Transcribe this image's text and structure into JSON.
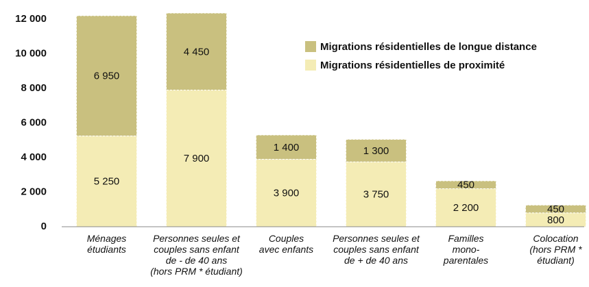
{
  "chart_data": {
    "type": "stacked_bar",
    "categories": [
      "Ménages\nétudiants",
      "Personnes seules et\ncouples sans enfant\nde - de 40 ans\n(hors PRM * étudiant)",
      "Couples\navec enfants",
      "Personnes seules et\ncouples sans enfant\nde + de 40 ans",
      "Familles\nmono-\nparentales",
      "Colocation\n(hors PRM *\nétudiant)"
    ],
    "series": [
      {
        "name": "Migrations résidentielles de proximité",
        "color": "#f4ecb5",
        "values": [
          5250,
          7900,
          3900,
          3750,
          2200,
          800
        ],
        "value_labels": [
          "5 250",
          "7 900",
          "3 900",
          "3 750",
          "2 200",
          "800"
        ]
      },
      {
        "name": "Migrations résidentielles de longue distance",
        "color": "#c9c07f",
        "values": [
          6950,
          4450,
          1400,
          1300,
          450,
          450
        ],
        "value_labels": [
          "6 950",
          "4 450",
          "1 400",
          "1 300",
          "450",
          "450"
        ]
      }
    ],
    "ylim": [
      0,
      12000
    ],
    "yticks": [
      {
        "value": 0,
        "label": "0"
      },
      {
        "value": 2000,
        "label": "2 000"
      },
      {
        "value": 4000,
        "label": "4 000"
      },
      {
        "value": 6000,
        "label": "6 000"
      },
      {
        "value": 8000,
        "label": "8 000"
      },
      {
        "value": 10000,
        "label": "10 000"
      },
      {
        "value": 12000,
        "label": "12 000"
      }
    ],
    "grid": false
  }
}
